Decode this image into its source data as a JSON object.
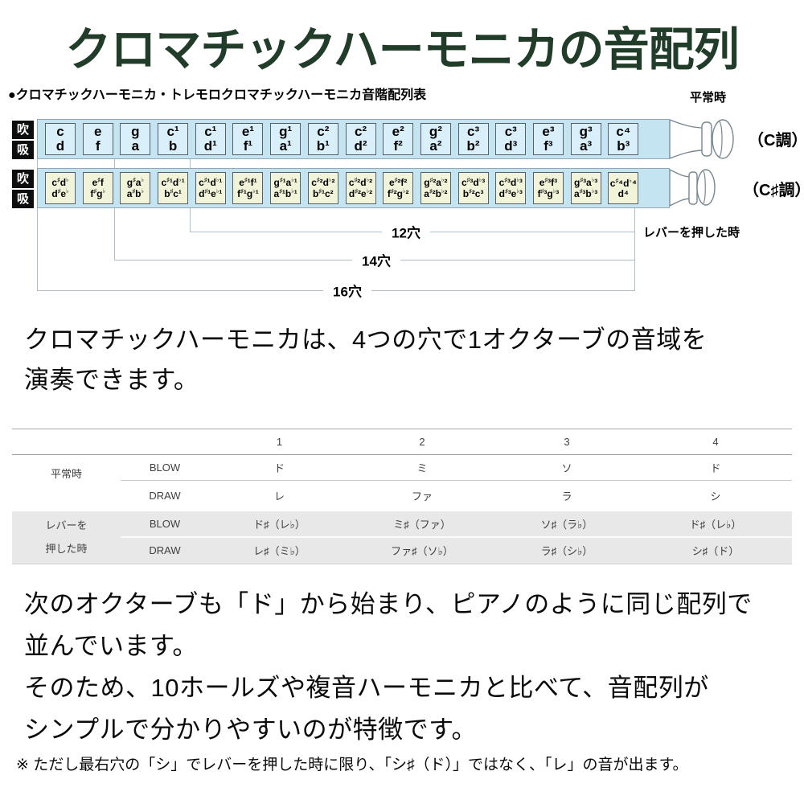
{
  "colors": {
    "title_green": "#223c2a",
    "harmonica_body_blue": "#c5e4f2",
    "hole_cell_blue": "#d9effa",
    "hole_cell_yellow": "#f2f4da",
    "table_band_gray": "#e8e8e8"
  },
  "title": "クロマチックハーモニカの音配列",
  "diagram": {
    "subtitle": "●クロマチックハーモニカ・トレモロクロマチックハーモニカ音階配列表",
    "blow_label": "吹",
    "draw_label": "吸",
    "normal_state_label": "平常時",
    "lever_state_label": "レバーを押した時",
    "hole_counts": {
      "h12": "12穴",
      "h14": "14穴",
      "h16": "16穴"
    },
    "row_c": {
      "key_label": "（C調）",
      "cells": [
        {
          "blow": "c",
          "draw": "d"
        },
        {
          "blow": "e",
          "draw": "f"
        },
        {
          "blow": "g",
          "draw": "a"
        },
        {
          "blow": "c¹",
          "draw": "b"
        },
        {
          "blow": "c¹",
          "draw": "d¹"
        },
        {
          "blow": "e¹",
          "draw": "f¹"
        },
        {
          "blow": "g¹",
          "draw": "a¹"
        },
        {
          "blow": "c²",
          "draw": "b¹"
        },
        {
          "blow": "c²",
          "draw": "d²"
        },
        {
          "blow": "e²",
          "draw": "f²"
        },
        {
          "blow": "g²",
          "draw": "a²"
        },
        {
          "blow": "c³",
          "draw": "b²"
        },
        {
          "blow": "c³",
          "draw": "d³"
        },
        {
          "blow": "e³",
          "draw": "f³"
        },
        {
          "blow": "g³",
          "draw": "a³"
        },
        {
          "blow": "c⁴",
          "draw": "b³"
        }
      ]
    },
    "row_csharp": {
      "key_label": "（C♯調）",
      "cells": [
        {
          "blow": "c♯d♭",
          "draw": "d♯e♭"
        },
        {
          "blow": "e♯f",
          "draw": "f♯g♭"
        },
        {
          "blow": "g♯a♭",
          "draw": "a♯b♭"
        },
        {
          "blow": "c♯¹d♭¹",
          "draw": "b♯c¹"
        },
        {
          "blow": "c♯¹d♭¹",
          "draw": "d♯¹e♭¹"
        },
        {
          "blow": "e♯¹f¹",
          "draw": "f♯¹g♭¹"
        },
        {
          "blow": "g♯¹a♭¹",
          "draw": "a♯¹b♭¹"
        },
        {
          "blow": "c♯²d♭²",
          "draw": "b♯¹c²"
        },
        {
          "blow": "c♯²d♭²",
          "draw": "d♯²e♭²"
        },
        {
          "blow": "e♯²f²",
          "draw": "f♯²g♭²"
        },
        {
          "blow": "g♯²a♭²",
          "draw": "a♯²b♭²"
        },
        {
          "blow": "c♯³d♭³",
          "draw": "b♯²c³"
        },
        {
          "blow": "c♯³d♭³",
          "draw": "d♯³e♭³"
        },
        {
          "blow": "e♯³f³",
          "draw": "f♯³g♭³"
        },
        {
          "blow": "g♯³a♭³",
          "draw": "a♯³b♭³"
        },
        {
          "blow": "c♯⁴d♭⁴",
          "draw": "d⁴"
        }
      ]
    }
  },
  "paragraph1": "クロマチックハーモニカは、4つの穴で1オクターブの音域を\n演奏できます。",
  "table": {
    "col_headers": [
      "1",
      "2",
      "3",
      "4"
    ],
    "sections": [
      {
        "label": "平常時",
        "rows": [
          {
            "action": "BLOW",
            "notes": [
              "ド",
              "ミ",
              "ソ",
              "ド"
            ]
          },
          {
            "action": "DRAW",
            "notes": [
              "レ",
              "ファ",
              "ラ",
              "シ"
            ]
          }
        ]
      },
      {
        "label": "レバーを\n押した時",
        "rows": [
          {
            "action": "BLOW",
            "notes": [
              "ド♯（レ♭）",
              "ミ♯（ファ）",
              "ソ♯（ラ♭）",
              "ド♯（レ♭）"
            ]
          },
          {
            "action": "DRAW",
            "notes": [
              "レ♯（ミ♭）",
              "ファ♯（ソ♭）",
              "ラ♯（シ♭）",
              "シ♯（ド）"
            ]
          }
        ]
      }
    ]
  },
  "paragraph2": "次のオクターブも「ド」から始まり、ピアノのように同じ配列で\n並んでいます。\nそのため、10ホールズや複音ハーモニカと比べて、音配列が\nシンプルで分かりやすいのが特徴です。",
  "footnote": "※ ただし最右穴の「シ」でレバーを押した時に限り、「シ♯（ド）」ではなく、「レ」の音が出ます。"
}
